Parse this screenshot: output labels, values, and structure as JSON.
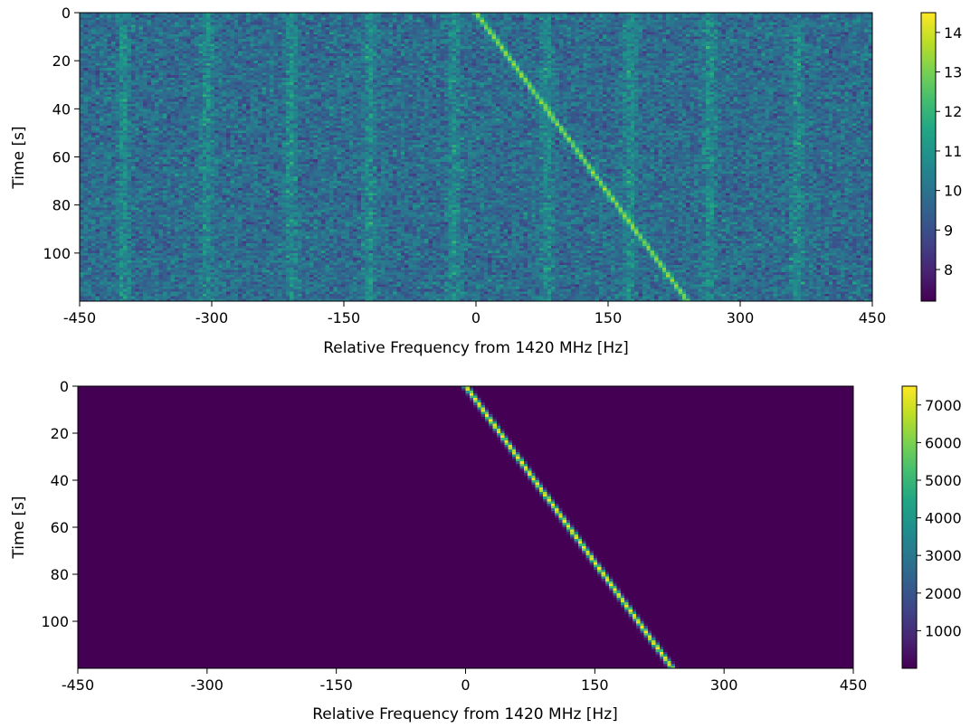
{
  "chart_data": [
    {
      "type": "heatmap",
      "title": "",
      "xlabel": "Relative Frequency from 1420 MHz [Hz]",
      "ylabel": "Time [s]",
      "xlim": [
        -450,
        450
      ],
      "ylim": [
        120,
        0
      ],
      "xticks": [
        -450,
        -300,
        -150,
        0,
        150,
        300,
        450
      ],
      "xtick_labels": [
        "-450",
        "-300",
        "-150",
        "0",
        "150",
        "300",
        "450"
      ],
      "yticks": [
        0,
        20,
        40,
        60,
        80,
        100
      ],
      "ytick_labels": [
        "0",
        "20",
        "40",
        "60",
        "80",
        "100"
      ],
      "colormap": "viridis",
      "colorbar": {
        "range": [
          7.2,
          14.5
        ],
        "ticks": [
          8,
          9,
          10,
          11,
          12,
          13,
          14
        ],
        "tick_labels": [
          "8",
          "9",
          "10",
          "11",
          "12",
          "13",
          "14"
        ]
      },
      "background_level": 9.8,
      "noise_amplitude": 1.1,
      "persistent_bands_hz": [
        -400,
        -305,
        -210,
        -120,
        -25,
        80,
        175,
        265,
        365
      ],
      "band_level": 0.9,
      "drift": {
        "start_hz": 0,
        "start_time_s": 0,
        "rate_hz_per_s": 2.0,
        "peak_value": 13.3
      }
    },
    {
      "type": "heatmap",
      "title": "",
      "xlabel": "Relative Frequency from 1420 MHz [Hz]",
      "ylabel": "Time [s]",
      "xlim": [
        -450,
        450
      ],
      "ylim": [
        120,
        0
      ],
      "xticks": [
        -450,
        -300,
        -150,
        0,
        150,
        300,
        450
      ],
      "xtick_labels": [
        "-450",
        "-300",
        "-150",
        "0",
        "150",
        "300",
        "450"
      ],
      "yticks": [
        0,
        20,
        40,
        60,
        80,
        100
      ],
      "ytick_labels": [
        "0",
        "20",
        "40",
        "60",
        "80",
        "100"
      ],
      "colormap": "viridis",
      "colorbar": {
        "range": [
          0,
          7500
        ],
        "ticks": [
          1000,
          2000,
          3000,
          4000,
          5000,
          6000,
          7000
        ],
        "tick_labels": [
          "1000",
          "2000",
          "3000",
          "4000",
          "5000",
          "6000",
          "7000"
        ]
      },
      "background_level": 0,
      "drift": {
        "start_hz": 0,
        "start_time_s": 0,
        "rate_hz_per_s": 2.0,
        "peak_value": 7400
      }
    }
  ]
}
